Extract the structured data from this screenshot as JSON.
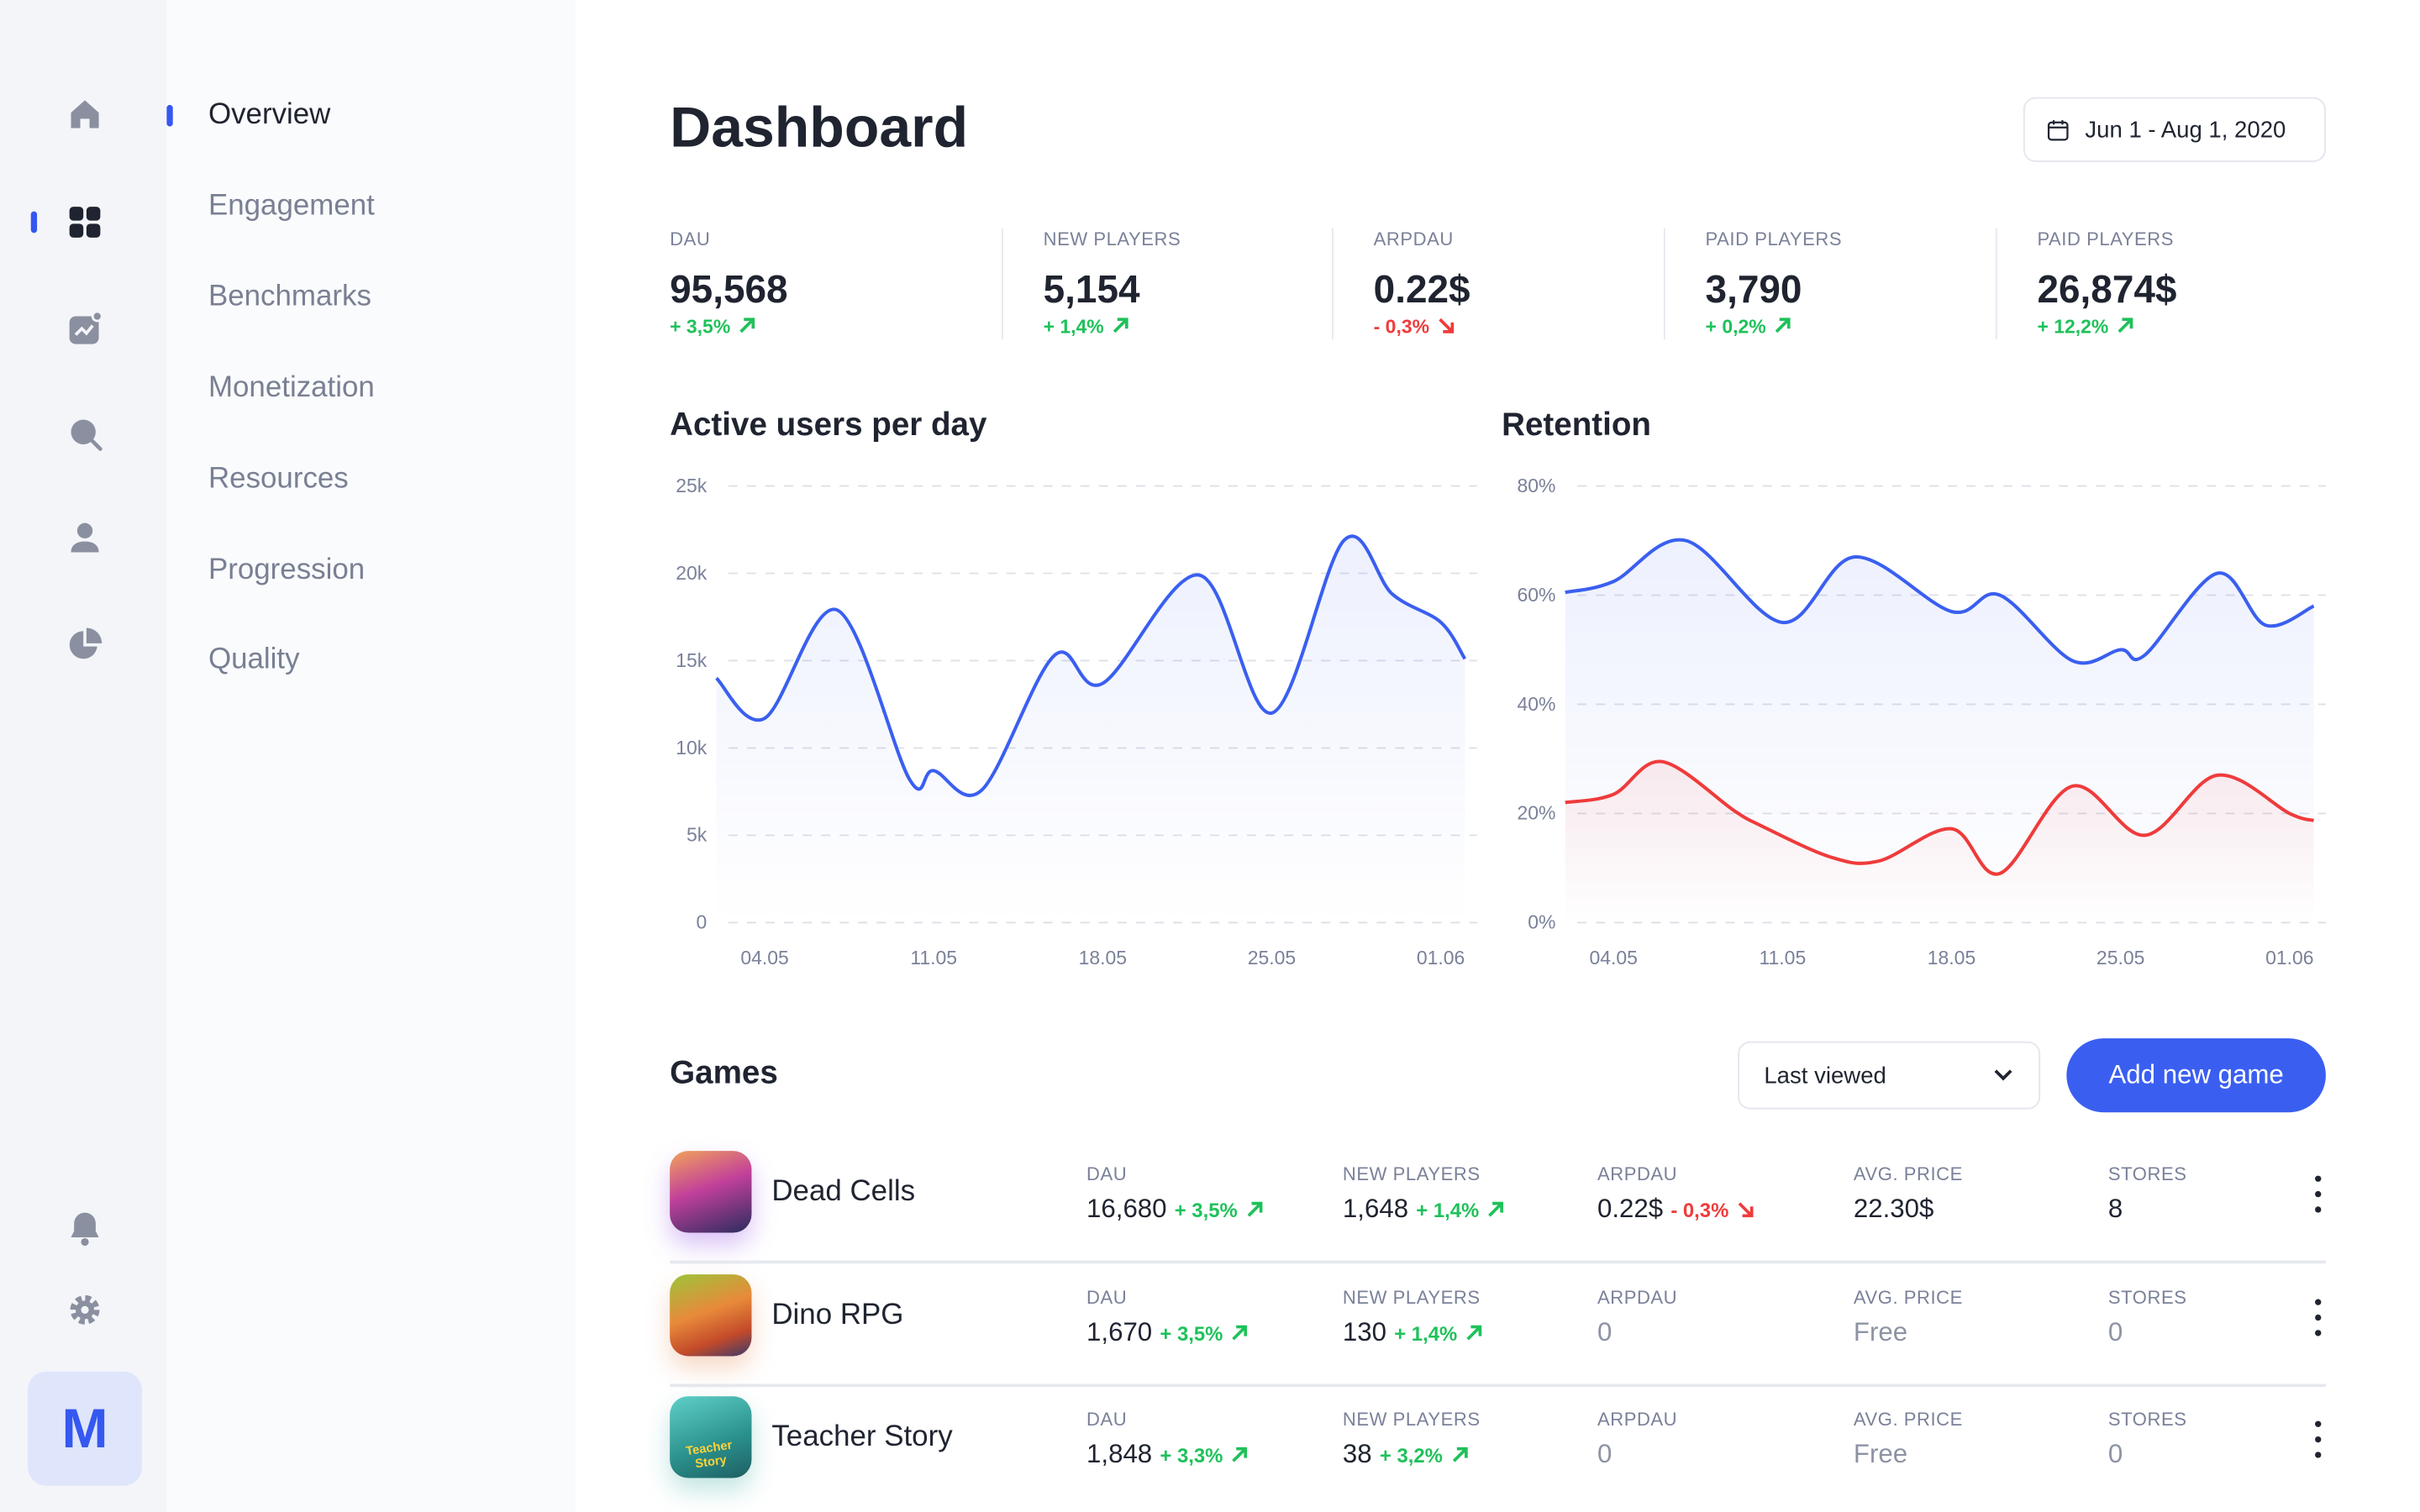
{
  "sidebar": {
    "icons": [
      "home-icon",
      "dashboard-icon",
      "analytics-icon",
      "search-icon",
      "user-icon",
      "pie-chart-icon",
      "bell-icon",
      "gear-icon"
    ],
    "active_icon": "dashboard-icon",
    "avatar_letter": "M"
  },
  "nav": {
    "items": [
      {
        "label": "Overview",
        "active": true
      },
      {
        "label": "Engagement"
      },
      {
        "label": "Benchmarks"
      },
      {
        "label": "Monetization"
      },
      {
        "label": "Resources"
      },
      {
        "label": "Progression"
      },
      {
        "label": "Quality"
      }
    ]
  },
  "header": {
    "title": "Dashboard",
    "date_range": "Jun 1 - Aug 1, 2020"
  },
  "kpis": [
    {
      "label": "DAU",
      "value": "95,568",
      "change": "+ 3,5%",
      "trend": "up"
    },
    {
      "label": "NEW PLAYERS",
      "value": "5,154",
      "change": "+ 1,4%",
      "trend": "up"
    },
    {
      "label": "ARPDAU",
      "value": "0.22$",
      "change": "- 0,3%",
      "trend": "down"
    },
    {
      "label": "PAID PLAYERS",
      "value": "3,790",
      "change": "+ 0,2%",
      "trend": "up"
    },
    {
      "label": "PAID PLAYERS",
      "value": "26,874$",
      "change": "+ 12,2%",
      "trend": "up"
    }
  ],
  "colors": {
    "accent": "#3a5ff0",
    "up": "#1fc15a",
    "down": "#ef3b3b",
    "series_blue": "#3a5ff0",
    "series_red": "#ef3b3b"
  },
  "chart_data": [
    {
      "type": "area",
      "title": "Active users per day",
      "ylim": [
        0,
        25000
      ],
      "yticks": [
        0,
        5000,
        10000,
        15000,
        20000,
        25000
      ],
      "ytick_labels": [
        "0",
        "5k",
        "10k",
        "15k",
        "20k",
        "25k"
      ],
      "xtick_labels": [
        "04.05",
        "11.05",
        "18.05",
        "25.05",
        "01.06"
      ],
      "grid": "horizontal-dashed",
      "series": [
        {
          "color": "#3a5ff0",
          "points": [
            [
              "02.05",
              14000
            ],
            [
              "04.05",
              11700
            ],
            [
              "07.05",
              17900
            ],
            [
              "10.05",
              8200
            ],
            [
              "11.05",
              8700
            ],
            [
              "13.05",
              7600
            ],
            [
              "16.05",
              15300
            ],
            [
              "18.05",
              13700
            ],
            [
              "22.05",
              19900
            ],
            [
              "25.05",
              12000
            ],
            [
              "28.05",
              21900
            ],
            [
              "30.05",
              18800
            ],
            [
              "01.06",
              17200
            ],
            [
              "02.06",
              15100
            ]
          ]
        }
      ]
    },
    {
      "type": "area",
      "title": "Retention",
      "ylim": [
        0,
        80
      ],
      "yticks": [
        0,
        20,
        40,
        60,
        80
      ],
      "ytick_labels": [
        "0%",
        "20%",
        "40%",
        "60%",
        "80%"
      ],
      "xtick_labels": [
        "04.05",
        "11.05",
        "18.05",
        "25.05",
        "01.06"
      ],
      "grid": "horizontal-dashed",
      "series": [
        {
          "color": "#3a5ff0",
          "points": [
            [
              "02.05",
              60.5
            ],
            [
              "04.05",
              62.5
            ],
            [
              "07.05",
              70
            ],
            [
              "11.05",
              55
            ],
            [
              "14.05",
              67
            ],
            [
              "18.05",
              57
            ],
            [
              "20.05",
              60
            ],
            [
              "23.05",
              48
            ],
            [
              "25.05",
              50
            ],
            [
              "26.05",
              49
            ],
            [
              "29.05",
              64
            ],
            [
              "31.05",
              54.5
            ],
            [
              "02.06",
              58
            ]
          ]
        },
        {
          "color": "#ef3b3b",
          "points": [
            [
              "02.05",
              22
            ],
            [
              "04.05",
              23.5
            ],
            [
              "06.05",
              29.5
            ],
            [
              "09.05",
              20.5
            ],
            [
              "10.05",
              18
            ],
            [
              "13.05",
              12
            ],
            [
              "15.05",
              11.3
            ],
            [
              "18.05",
              17.2
            ],
            [
              "20.05",
              9
            ],
            [
              "23.05",
              25
            ],
            [
              "26.05",
              16
            ],
            [
              "29.05",
              27
            ],
            [
              "01.06",
              20
            ],
            [
              "02.06",
              18.7
            ]
          ]
        }
      ]
    }
  ],
  "games": {
    "title": "Games",
    "sort_value": "Last viewed",
    "add_label": "Add new game",
    "columns": [
      "DAU",
      "NEW PLAYERS",
      "ARPDAU",
      "AVG. PRICE",
      "STORES"
    ],
    "rows": [
      {
        "name": "Dead Cells",
        "icon": "dead-cells-icon",
        "dau": "16,680",
        "dau_change": "+ 3,5%",
        "dau_trend": "up",
        "new_players": "1,648",
        "np_change": "+ 1,4%",
        "np_trend": "up",
        "arpdau": "0.22$",
        "arpdau_change": "- 0,3%",
        "arpdau_trend": "down",
        "avg_price": "22.30$",
        "stores": "8"
      },
      {
        "name": "Dino RPG",
        "icon": "dino-rpg-icon",
        "dau": "1,670",
        "dau_change": "+ 3,5%",
        "dau_trend": "up",
        "new_players": "130",
        "np_change": "+ 1,4%",
        "np_trend": "up",
        "arpdau": "0",
        "avg_price": "Free",
        "stores": "0"
      },
      {
        "name": "Teacher Story",
        "icon": "teacher-story-icon",
        "icon_text": "Teacher Story",
        "dau": "1,848",
        "dau_change": "+ 3,3%",
        "dau_trend": "up",
        "new_players": "38",
        "np_change": "+ 3,2%",
        "np_trend": "up",
        "arpdau": "0",
        "avg_price": "Free",
        "stores": "0"
      }
    ]
  }
}
